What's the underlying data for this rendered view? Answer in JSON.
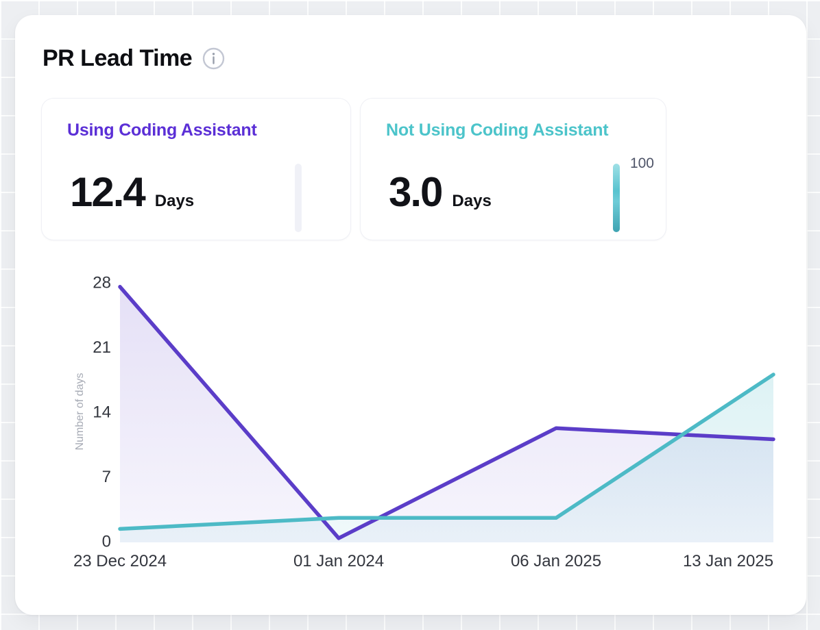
{
  "header": {
    "title": "PR Lead Time",
    "info_icon": "info-icon"
  },
  "stat_cards": [
    {
      "label": "Using Coding Assistant",
      "value": "12.4",
      "unit": "Days",
      "accent": "#5b2fd6",
      "gauge": {
        "filled": false,
        "label": ""
      }
    },
    {
      "label": "Not Using Coding Assistant",
      "value": "3.0",
      "unit": "Days",
      "accent": "#4cc4ca",
      "gauge": {
        "filled": true,
        "label": "100"
      }
    }
  ],
  "chart_data": {
    "type": "area",
    "categories": [
      "23 Dec 2024",
      "01 Jan 2024",
      "06 Jan 2025",
      "13 Jan 2025"
    ],
    "series": [
      {
        "name": "Using Coding Assistant",
        "color": "#5b3dc8",
        "values": [
          27.5,
          0.3,
          12.2,
          11.0
        ]
      },
      {
        "name": "Not Using Coding Assistant",
        "color": "#4dbac6",
        "values": [
          1.3,
          2.5,
          2.5,
          18.0
        ]
      }
    ],
    "title": "",
    "xlabel": "",
    "ylabel": "Number of days",
    "yticks": [
      0,
      7,
      14,
      21,
      28
    ],
    "ylim": [
      0,
      28
    ],
    "grid": false,
    "legend": "none"
  }
}
